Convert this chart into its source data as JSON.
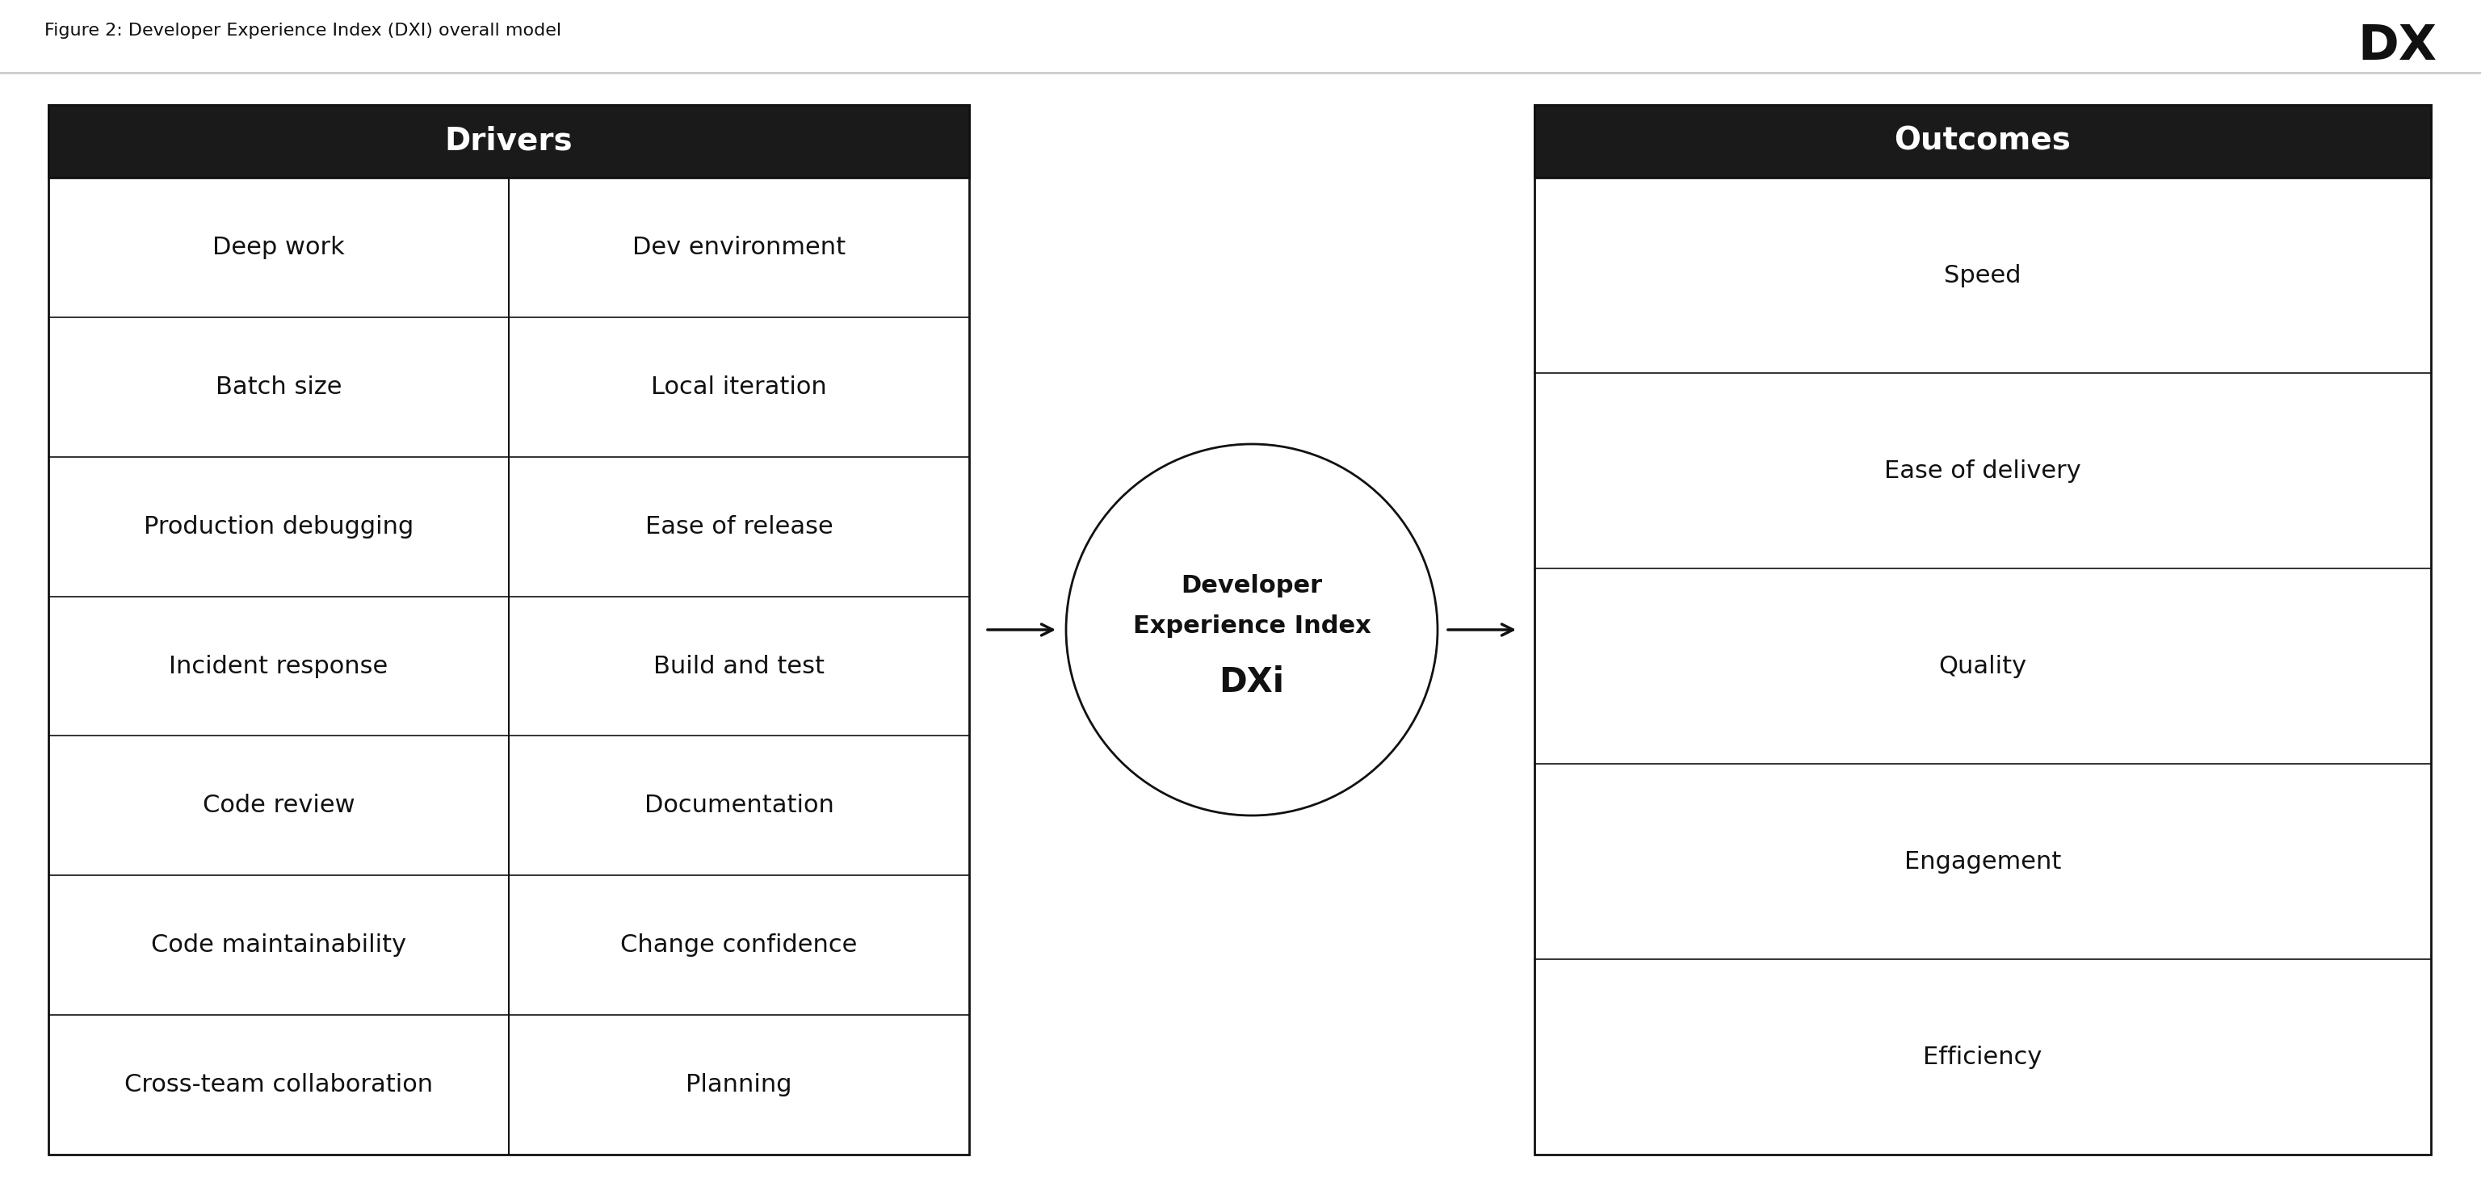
{
  "title": "Figure 2: Developer Experience Index (DXI) overall model",
  "bg_color": "#ffffff",
  "header_bg": "#1a1a1a",
  "header_text_color": "#ffffff",
  "cell_text_color": "#111111",
  "border_color": "#111111",
  "line_color": "#aaaaaa",
  "drivers_header": "Drivers",
  "outcomes_header": "Outcomes",
  "drivers_left": [
    "Deep work",
    "Batch size",
    "Production debugging",
    "Incident response",
    "Code review",
    "Code maintainability",
    "Cross-team collaboration"
  ],
  "drivers_right": [
    "Dev environment",
    "Local iteration",
    "Ease of release",
    "Build and test",
    "Documentation",
    "Change confidence",
    "Planning"
  ],
  "outcomes": [
    "Speed",
    "Ease of delivery",
    "Quality",
    "Engagement",
    "Efficiency"
  ],
  "circle_label_line1": "Developer",
  "circle_label_line2": "Experience Index",
  "circle_label_line3": "DXi",
  "font_size_header": 28,
  "font_size_cell": 22,
  "font_size_title": 16,
  "font_size_circle_text": 22,
  "font_size_dxi": 30,
  "font_size_dx_logo": 44
}
